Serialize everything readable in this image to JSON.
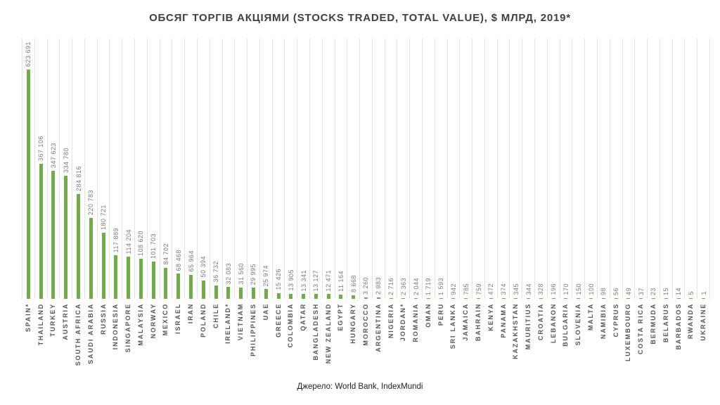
{
  "page": {
    "title": "ОБСЯГ ТОРГІВ АКЦІЯМИ (STOCKS TRADED, TOTAL VALUE), $ МЛРД, 2019*",
    "source": "Джерело: World Bank, IndexMundi"
  },
  "chart_data": {
    "type": "bar",
    "orientation": "vertical",
    "title": "ОБСЯГ ТОРГІВ АКЦІЯМИ (STOCKS TRADED, TOTAL VALUE), $ МЛРД, 2019*",
    "source": "Джерело: World Bank, IndexMundi",
    "xlabel": "",
    "ylabel": "",
    "ylim": [
      0,
      623691
    ],
    "legend": "none",
    "grid": "vertical category gridlines only, no y-axis ticks",
    "bar_color": "#70AD47",
    "gridline_color": "#E2E2E2",
    "value_label_color": "#7A7A7A",
    "category_label_color": "#555555",
    "categories": [
      "SPAIN*",
      "THAILAND",
      "TURKEY",
      "AUSTRIA",
      "SOUTH AFRICA",
      "SAUDI ARABIA",
      "RUSSIA",
      "INDONESIA",
      "SINGAPORE",
      "MALAYSIA",
      "NORWAY",
      "MEXICO",
      "ISRAEL",
      "IRAN",
      "POLAND",
      "CHILE",
      "IRELAND*",
      "VIETNAM",
      "PHILIPPINES",
      "UAE",
      "GREECE",
      "COLOMBIA",
      "QATAR",
      "BANGLADESH",
      "NEW ZEALAND",
      "EGYPT",
      "HUNGARY",
      "MOROCCO",
      "ARGENTINA",
      "NIGERIA",
      "JORDAN*",
      "ROMANIA",
      "OMAN",
      "PERU",
      "SRI LANKA",
      "JAMAICA",
      "BAHRAIN",
      "KENYA",
      "PANAMA",
      "KAZAKHSTAN",
      "MAURITIUS",
      "CROATIA",
      "LEBANON",
      "BULGARIA",
      "SLOVENIA",
      "MALTA",
      "NAMIBIA",
      "CYPRUS",
      "LUXEMBOURG",
      "COSTA RICA",
      "BERMUDA",
      "BELARUS",
      "BARBADOS",
      "RWANDA",
      "UKRAINE"
    ],
    "values": [
      623691,
      367106,
      347623,
      334780,
      284816,
      220783,
      180721,
      117889,
      114204,
      108620,
      101703,
      84702,
      68468,
      65964,
      50394,
      36732,
      32083,
      31560,
      29995,
      25974,
      15426,
      13905,
      13341,
      13127,
      12471,
      11164,
      8668,
      3260,
      2983,
      2716,
      2363,
      2044,
      1719,
      1593,
      942,
      785,
      759,
      472,
      374,
      345,
      344,
      328,
      196,
      170,
      150,
      100,
      98,
      56,
      49,
      37,
      23,
      15,
      14,
      5,
      1
    ],
    "value_labels": [
      "623 691",
      "367 106",
      "347 623",
      "334 780",
      "284 816",
      "220 783",
      "180 721",
      "117 889",
      "114 204",
      "108 620",
      "101 703",
      "84 702",
      "68 468",
      "65 964",
      "50 394",
      "36 732",
      "32 083",
      "31 560",
      "29 995",
      "25 974",
      "15 426",
      "13 905",
      "13 341",
      "13 127",
      "12 471",
      "11 164",
      "8 668",
      "3 260",
      "2 983",
      "2 716",
      "2 363",
      "2 044",
      "1 719",
      "1 593",
      "942",
      "785",
      "759",
      "472",
      "374",
      "345",
      "344",
      "328",
      "196",
      "170",
      "150",
      "100",
      "98",
      "56",
      "49",
      "37",
      "23",
      "15",
      "14",
      "5",
      "1"
    ]
  }
}
